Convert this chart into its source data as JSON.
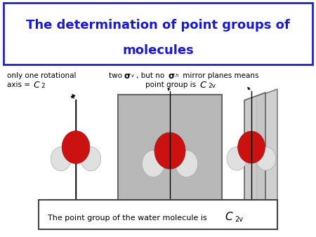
{
  "title_line1": "The determination of point groups of",
  "title_line2": "molecules",
  "title_bg": "#ffffff",
  "title_border": "#2222bb",
  "title_text_color": "#1a1acc",
  "bg_color": "#ffffff",
  "label_color": "#000000",
  "gray_box_color": "#b8b8b8",
  "bottom_text1": "The point group of the water molecule is ",
  "red_color": "#cc1111",
  "white_sphere": "#e0e0e0",
  "bond_color": "#cccccc"
}
